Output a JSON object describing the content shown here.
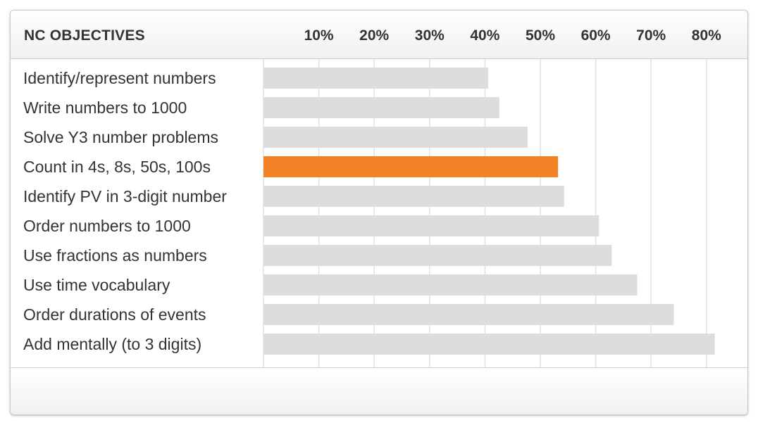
{
  "header": {
    "title": "NC OBJECTIVES"
  },
  "chart_data": {
    "type": "bar",
    "orientation": "horizontal",
    "categories": [
      "Identify/represent numbers",
      "Write numbers to 1000",
      "Solve Y3 number problems",
      "Count in 4s, 8s, 50s, 100s",
      "Identify PV in 3-digit number",
      "Order numbers to 1000",
      "Use fractions as numbers",
      "Use time vocabulary",
      "Order durations of events",
      "Add mentally (to 3 digits)"
    ],
    "values": [
      40.6,
      42.6,
      47.7,
      53.2,
      54.3,
      60.6,
      62.9,
      67.5,
      74.1,
      81.5
    ],
    "highlight_index": 3,
    "ticks": [
      10,
      20,
      30,
      40,
      50,
      60,
      70,
      80
    ],
    "tick_labels": [
      "10%",
      "20%",
      "30%",
      "40%",
      "50%",
      "60%",
      "70%",
      "80%"
    ],
    "xlim": [
      0,
      85
    ],
    "grid": true,
    "colors": {
      "bar": "#dddddd",
      "highlight": "#f18225",
      "grid": "#e2e2e2",
      "text": "#333333"
    }
  }
}
